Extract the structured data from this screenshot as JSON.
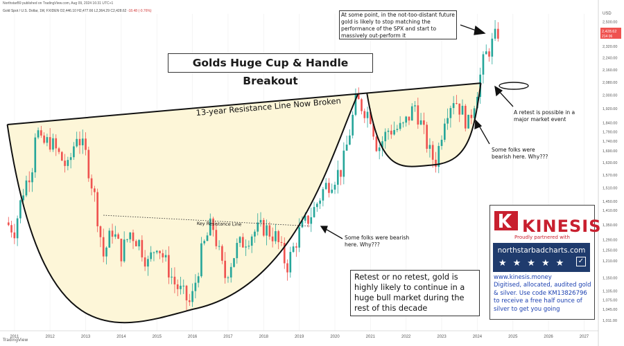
{
  "header": {
    "published": "NorthstarB9 published on TradingView.com, Aug 09, 2024 16:31 UTC+1",
    "symbol_line": "Gold Spot / U.S. Dollar, 1M, FXIDEN",
    "ohlc": "O2,446.10  H2,477.66  L2,364.29  C2,428.62",
    "change": "-18.48 (-0.76%)"
  },
  "title": "Golds Huge Cup & Handle Breakout",
  "resistance_label": "13-year Resistance Line Now Broken",
  "key_resistance_label": "Key Resistance Line",
  "top_annotation": "At some point, in the not-too-distant future gold is likely to stop matching the performance of the SPX and start to massively out-perform it",
  "retest_note": "A retest is possible in a major market event",
  "bearish_note_1": "Some folks were bearish here. Why???",
  "bearish_note_2": "Some folks were bearish here. Why???",
  "bottom_box": "Retest or no retest, gold is highly likely to continue in a huge bull market during the rest of this decade",
  "ad": {
    "brand": "KINESIS",
    "partner_line": "Proudly partnered with",
    "site": "northstarbadcharts.com",
    "url": "www.kinesis.money",
    "description": "Digitised, allocated, audited gold & silver. Use code KM13826796 to receive a free half ounce of silver to get you going"
  },
  "footer_logo": "TradingView",
  "colors": {
    "up": "#26a69a",
    "down": "#ef5350",
    "cup_fill": "#fdf6d8",
    "ad_red": "#c8202f",
    "ad_navy": "#1f3b6d",
    "price_tag": "#ef5350"
  },
  "chart_data": {
    "type": "candlestick",
    "interval": "1M",
    "currency_label": "USD",
    "x_range": [
      2010.75,
      2027.4
    ],
    "y_range": [
      1000,
      2560
    ],
    "y_ticks": [
      2500,
      2420,
      2320,
      2240,
      2160,
      2080,
      2000,
      1920,
      1840,
      1790,
      1740,
      1690,
      1630,
      1570,
      1510,
      1450,
      1410,
      1350,
      1290,
      1250,
      1210,
      1150,
      1105,
      1075,
      1045,
      1011
    ],
    "x_ticks": [
      "2011",
      "2012",
      "2013",
      "2014",
      "2015",
      "2016",
      "2017",
      "2018",
      "2019",
      "2020",
      "2021",
      "2022",
      "2023",
      "2024",
      "2025",
      "2026",
      "2027"
    ],
    "last_price": "2,428.62",
    "last_price_sub": "214 06",
    "resistance_line": [
      [
        2010.8,
        1830
      ],
      [
        2024.1,
        2075
      ]
    ],
    "key_resistance": [
      [
        2013.5,
        1390
      ],
      [
        2019.3,
        1345
      ]
    ],
    "cup_low": [
      2016.0,
      1045
    ],
    "handle_low": [
      2022.8,
      1620
    ],
    "closes": [
      {
        "year": 2010.75,
        "c": 1360
      },
      {
        "year": 2011.0,
        "c": 1330
      },
      {
        "year": 2011.25,
        "c": 1500
      },
      {
        "year": 2011.5,
        "c": 1620
      },
      {
        "year": 2011.6,
        "c": 1830
      },
      {
        "year": 2011.75,
        "c": 1720
      },
      {
        "year": 2012.0,
        "c": 1740
      },
      {
        "year": 2012.5,
        "c": 1600
      },
      {
        "year": 2012.75,
        "c": 1780
      },
      {
        "year": 2013.0,
        "c": 1670
      },
      {
        "year": 2013.25,
        "c": 1470
      },
      {
        "year": 2013.5,
        "c": 1230
      },
      {
        "year": 2013.75,
        "c": 1330
      },
      {
        "year": 2014.0,
        "c": 1240
      },
      {
        "year": 2014.25,
        "c": 1320
      },
      {
        "year": 2014.5,
        "c": 1280
      },
      {
        "year": 2014.75,
        "c": 1200
      },
      {
        "year": 2015.0,
        "c": 1280
      },
      {
        "year": 2015.5,
        "c": 1130
      },
      {
        "year": 2015.95,
        "c": 1060
      },
      {
        "year": 2016.25,
        "c": 1240
      },
      {
        "year": 2016.55,
        "c": 1360
      },
      {
        "year": 2016.9,
        "c": 1150
      },
      {
        "year": 2017.25,
        "c": 1260
      },
      {
        "year": 2017.7,
        "c": 1320
      },
      {
        "year": 2018.0,
        "c": 1340
      },
      {
        "year": 2018.35,
        "c": 1300
      },
      {
        "year": 2018.65,
        "c": 1190
      },
      {
        "year": 2019.0,
        "c": 1320
      },
      {
        "year": 2019.4,
        "c": 1410
      },
      {
        "year": 2019.7,
        "c": 1510
      },
      {
        "year": 2020.2,
        "c": 1600
      },
      {
        "year": 2020.6,
        "c": 1970
      },
      {
        "year": 2021.0,
        "c": 1880
      },
      {
        "year": 2021.2,
        "c": 1700
      },
      {
        "year": 2021.5,
        "c": 1800
      },
      {
        "year": 2021.9,
        "c": 1810
      },
      {
        "year": 2022.25,
        "c": 1940
      },
      {
        "year": 2022.7,
        "c": 1660
      },
      {
        "year": 2022.85,
        "c": 1640
      },
      {
        "year": 2023.1,
        "c": 1900
      },
      {
        "year": 2023.35,
        "c": 1990
      },
      {
        "year": 2023.75,
        "c": 1830
      },
      {
        "year": 2024.0,
        "c": 2040
      },
      {
        "year": 2024.2,
        "c": 2240
      },
      {
        "year": 2024.4,
        "c": 2330
      },
      {
        "year": 2024.6,
        "c": 2430
      }
    ]
  }
}
